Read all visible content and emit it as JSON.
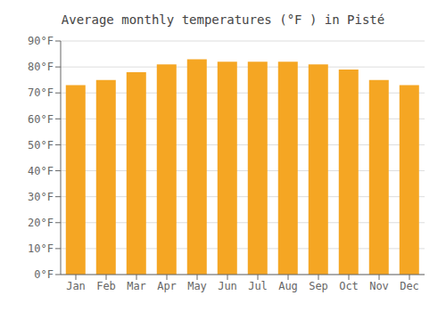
{
  "chart_data": {
    "type": "bar",
    "title": "Average monthly temperatures (°F ) in Pisté",
    "categories": [
      "Jan",
      "Feb",
      "Mar",
      "Apr",
      "May",
      "Jun",
      "Jul",
      "Aug",
      "Sep",
      "Oct",
      "Nov",
      "Dec"
    ],
    "values": [
      73,
      75,
      78,
      81,
      83,
      82,
      82,
      82,
      81,
      79,
      75,
      73
    ],
    "color": "#F5A623",
    "ylim": [
      0,
      90
    ],
    "yticks": [
      {
        "value": 0,
        "label": "0°F"
      },
      {
        "value": 10,
        "label": "10°F"
      },
      {
        "value": 20,
        "label": "20°F"
      },
      {
        "value": 30,
        "label": "30°F"
      },
      {
        "value": 40,
        "label": "40°F"
      },
      {
        "value": 50,
        "label": "50°F"
      },
      {
        "value": 60,
        "label": "60°F"
      },
      {
        "value": 70,
        "label": "70°F"
      },
      {
        "value": 80,
        "label": "80°F"
      },
      {
        "value": 90,
        "label": "90°F"
      }
    ],
    "grid": true
  }
}
